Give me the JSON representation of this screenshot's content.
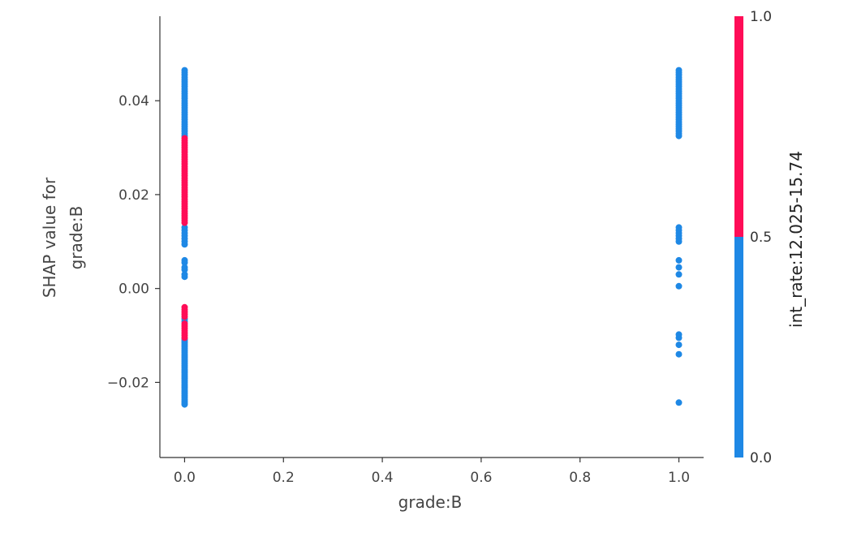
{
  "chart_data": {
    "type": "scatter",
    "xlabel": "grade:B",
    "ylabel": [
      "SHAP value for",
      "grade:B"
    ],
    "xlim": [
      -0.05,
      1.05
    ],
    "ylim": [
      -0.036,
      0.058
    ],
    "xticks": [
      0.0,
      0.2,
      0.4,
      0.6,
      0.8,
      1.0
    ],
    "xtick_labels": [
      "0.0",
      "0.2",
      "0.4",
      "0.6",
      "0.8",
      "1.0"
    ],
    "yticks": [
      -0.02,
      0.0,
      0.02,
      0.04
    ],
    "ytick_labels": [
      "−0.02",
      "0.00",
      "0.02",
      "0.04"
    ],
    "grid": false,
    "colorbar": {
      "label": "int_rate:12.025-15.74",
      "ticks": [
        0.0,
        0.5,
        1.0
      ],
      "tick_labels": [
        "0.0",
        "0.5",
        "1.0"
      ],
      "low_color": "#1E88E5",
      "high_color": "#FF0D57"
    },
    "series": [
      {
        "color_value": 0,
        "x": [
          0,
          0,
          0,
          0,
          0,
          0,
          0,
          0,
          0,
          0,
          0,
          0,
          0,
          0,
          0,
          0,
          0,
          0,
          0,
          0,
          0,
          0,
          0,
          0,
          0,
          0,
          0,
          0,
          0,
          0,
          0,
          0,
          0,
          0,
          0,
          0,
          0,
          0,
          0,
          0,
          0,
          0,
          0,
          0,
          0,
          0,
          0,
          0,
          0,
          0,
          0,
          0,
          0,
          0,
          0,
          0,
          0,
          0,
          0,
          0,
          0,
          0,
          0,
          0,
          0,
          0,
          0,
          0,
          0,
          0,
          0,
          0,
          0,
          0,
          0,
          0,
          0,
          0,
          0,
          0
        ],
        "y": [
          -0.0065,
          -0.007,
          -0.0108,
          -0.0112,
          -0.0116,
          -0.012,
          -0.0124,
          -0.0128,
          -0.0132,
          -0.0136,
          -0.014,
          -0.0144,
          -0.0148,
          -0.0152,
          -0.0156,
          -0.016,
          -0.0164,
          -0.0168,
          -0.0172,
          -0.0176,
          -0.018,
          -0.0184,
          -0.0188,
          -0.0192,
          -0.0196,
          -0.02,
          -0.0204,
          -0.0208,
          -0.0212,
          -0.0216,
          -0.022,
          -0.0224,
          -0.0228,
          -0.0232,
          -0.0236,
          -0.024,
          -0.0244,
          -0.0247,
          0.0465,
          0.046,
          0.0455,
          0.045,
          0.0445,
          0.044,
          0.0435,
          0.043,
          0.0425,
          0.042,
          0.0415,
          0.041,
          0.0405,
          0.04,
          0.0395,
          0.039,
          0.0385,
          0.038,
          0.0375,
          0.037,
          0.0365,
          0.036,
          0.0355,
          0.035,
          0.0345,
          0.034,
          0.0335,
          0.033,
          0.0325,
          0.013,
          0.0124,
          0.0118,
          0.0112,
          0.0106,
          0.01,
          0.0094,
          0.006,
          0.0055,
          0.0045,
          0.004,
          0.003,
          0.0025
        ]
      },
      {
        "color_value": 1,
        "x": [
          0,
          0,
          0,
          0,
          0,
          0,
          0,
          0,
          0,
          0,
          0,
          0,
          0,
          0,
          0,
          0,
          0,
          0,
          0,
          0,
          0,
          0,
          0,
          0,
          0,
          0,
          0,
          0,
          0,
          0,
          0,
          0,
          0,
          0,
          0,
          0,
          0,
          0,
          0,
          0,
          0,
          0,
          0,
          0,
          0,
          0,
          0,
          0,
          0
        ],
        "y": [
          -0.004,
          -0.0045,
          -0.005,
          -0.0055,
          -0.006,
          -0.0075,
          -0.008,
          -0.0085,
          -0.009,
          -0.0095,
          -0.01,
          -0.0105,
          0.032,
          0.0315,
          0.031,
          0.0305,
          0.03,
          0.0295,
          0.029,
          0.0285,
          0.028,
          0.0275,
          0.027,
          0.0265,
          0.026,
          0.0255,
          0.025,
          0.0245,
          0.024,
          0.0235,
          0.023,
          0.0225,
          0.022,
          0.0215,
          0.021,
          0.0205,
          0.02,
          0.0195,
          0.019,
          0.0185,
          0.018,
          0.0175,
          0.017,
          0.0165,
          0.016,
          0.0155,
          0.015,
          0.0145,
          0.014
        ]
      },
      {
        "color_value": 0,
        "x": [
          1,
          1,
          1,
          1,
          1,
          1,
          1,
          1,
          1,
          1,
          1,
          1,
          1,
          1,
          1,
          1,
          1,
          1,
          1,
          1,
          1,
          1,
          1,
          1,
          1,
          1,
          1,
          1,
          1,
          1,
          1,
          1,
          1,
          1,
          1,
          1,
          1,
          1,
          1,
          1,
          1,
          1,
          1,
          1
        ],
        "y": [
          0.0465,
          0.046,
          0.0455,
          0.045,
          0.0445,
          0.044,
          0.0435,
          0.043,
          0.0425,
          0.042,
          0.0415,
          0.041,
          0.0405,
          0.04,
          0.0395,
          0.039,
          0.0385,
          0.038,
          0.0375,
          0.037,
          0.0365,
          0.036,
          0.0355,
          0.035,
          0.0345,
          0.034,
          0.0335,
          0.033,
          0.0325,
          0.013,
          0.0124,
          0.0118,
          0.0112,
          0.0106,
          0.01,
          0.006,
          0.0045,
          0.003,
          0.0005,
          -0.0098,
          -0.0105,
          -0.012,
          -0.014,
          -0.0243
        ]
      }
    ]
  }
}
